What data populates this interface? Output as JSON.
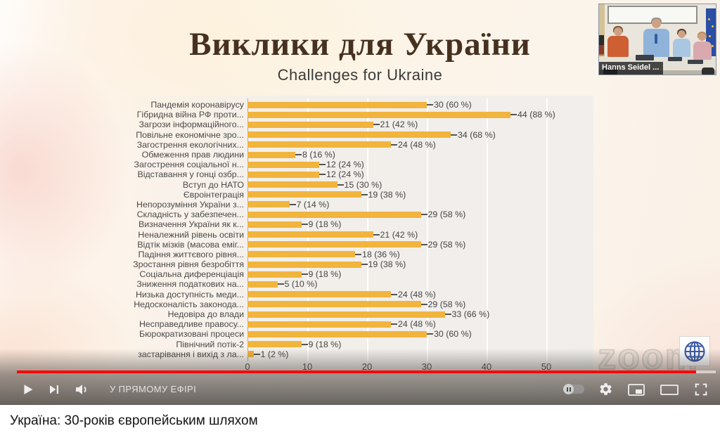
{
  "page": {
    "video_title": "Україна: 30-років європейським шляхом"
  },
  "slide": {
    "title": "Виклики для України",
    "subtitle": "Challenges for Ukraine",
    "watermark": "zoom",
    "title_color": "#46301F",
    "background_color": "#FCF4EA"
  },
  "webcam": {
    "label": "Hanns Seidel ..."
  },
  "player": {
    "live_text": "У ПРЯМОМУ ЕФІРІ",
    "accent_color": "#FF0000",
    "progress": {
      "start_percent": 2.3,
      "played_end_percent": 96.7,
      "buffered_end_percent": 99.4
    }
  },
  "chart_data": {
    "type": "bar",
    "orientation": "horizontal",
    "title": "",
    "xlabel": "",
    "ylabel": "",
    "xlim": [
      0,
      50
    ],
    "xticks": [
      "0",
      "10",
      "20",
      "30",
      "40",
      "50"
    ],
    "grid": true,
    "bar_color": "#F1B43D",
    "categories": [
      "Пандемія коронавірусу",
      "Гібридна війна РФ проти...",
      "Загрози інформаційного...",
      "Повільне економічне зро...",
      "Загострення екологічних...",
      "Обмеження прав людини",
      "Загострення соціальної н...",
      "Відставання у гонці озбр...",
      "Вступ до НАТО",
      "Євроінтеграція",
      "Непорозуміння України з...",
      "Складність у забезпечен...",
      "Визначення України як к...",
      "Неналежний рівень освіти",
      "Відтік мізків (масова еміг...",
      "Падіння життєвого рівня...",
      "Зростання рівня безробіття",
      "Соціальна диференціація",
      "Зниження податкових на...",
      "Низька доступність меди...",
      "Недосконалість законода...",
      "Недовіра до влади",
      "Несправедливе правосу...",
      "Бюрократизовані процеси",
      "Північний потік-2",
      "застарівання і вихід з ла..."
    ],
    "values": [
      30,
      44,
      21,
      34,
      24,
      8,
      12,
      12,
      15,
      19,
      7,
      29,
      9,
      21,
      29,
      18,
      19,
      9,
      5,
      24,
      29,
      33,
      24,
      30,
      9,
      1
    ],
    "value_labels": [
      "30 (60 %)",
      "44 (88 %)",
      "21 (42 %)",
      "34 (68 %)",
      "24 (48 %)",
      "8 (16 %)",
      "12 (24 %)",
      "12 (24 %)",
      "15 (30 %)",
      "19 (38 %)",
      "7 (14 %)",
      "29 (58 %)",
      "9 (18 %)",
      "21 (42 %)",
      "29 (58 %)",
      "18 (36 %)",
      "19 (38 %)",
      "9 (18 %)",
      "5 (10 %)",
      "24 (48 %)",
      "29 (58 %)",
      "33 (66 %)",
      "24 (48 %)",
      "30 (60 %)",
      "9 (18 %)",
      "1 (2 %)"
    ]
  }
}
